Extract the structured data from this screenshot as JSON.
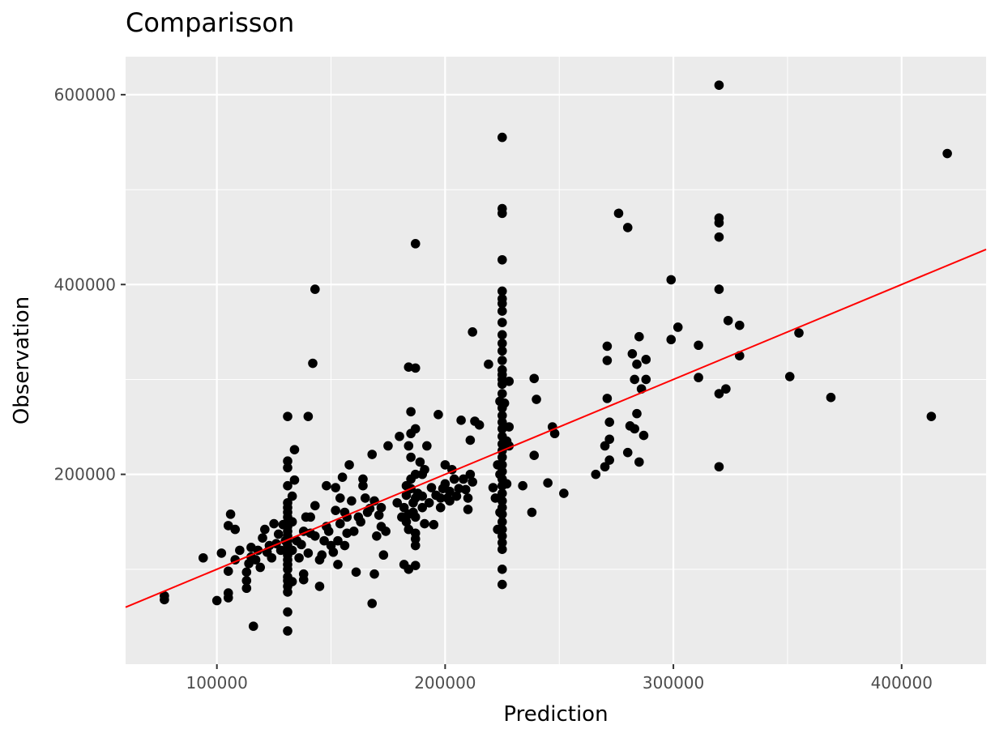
{
  "chart_data": {
    "type": "scatter",
    "title": "Comparisson",
    "xlabel": "Prediction",
    "ylabel": "Observation",
    "xlim": [
      60000,
      437000
    ],
    "ylim": [
      0,
      640000
    ],
    "x_ticks": [
      100000,
      200000,
      300000,
      400000
    ],
    "x_tick_labels": [
      "100000",
      "200000",
      "300000",
      "400000"
    ],
    "y_ticks": [
      200000,
      400000,
      600000
    ],
    "y_tick_labels": [
      "200000",
      "400000",
      "600000"
    ],
    "grid": true,
    "legend": "none",
    "point_color": "#000000",
    "line_color": "#ff0000",
    "background_color": "#ebebeb",
    "fit_line": {
      "x": [
        60000,
        437000
      ],
      "y": [
        60000,
        437000
      ]
    },
    "points": [
      [
        77000,
        68000
      ],
      [
        77000,
        72000
      ],
      [
        94000,
        112000
      ],
      [
        100000,
        67000
      ],
      [
        102000,
        117000
      ],
      [
        105000,
        70000
      ],
      [
        105000,
        75000
      ],
      [
        105000,
        98000
      ],
      [
        105000,
        146000
      ],
      [
        106000,
        158000
      ],
      [
        108000,
        110000
      ],
      [
        108000,
        142000
      ],
      [
        110000,
        120000
      ],
      [
        113000,
        80000
      ],
      [
        113000,
        88000
      ],
      [
        113000,
        97000
      ],
      [
        114000,
        106000
      ],
      [
        115000,
        113000
      ],
      [
        115000,
        123000
      ],
      [
        116000,
        40000
      ],
      [
        117000,
        110000
      ],
      [
        118000,
        120000
      ],
      [
        119000,
        102000
      ],
      [
        120000,
        133000
      ],
      [
        121000,
        142000
      ],
      [
        122000,
        118000
      ],
      [
        123000,
        125000
      ],
      [
        124000,
        112000
      ],
      [
        125000,
        148000
      ],
      [
        126000,
        127000
      ],
      [
        127000,
        137000
      ],
      [
        128000,
        120000
      ],
      [
        129000,
        147000
      ],
      [
        130000,
        130000
      ],
      [
        131000,
        35000
      ],
      [
        131000,
        55000
      ],
      [
        131000,
        76000
      ],
      [
        131000,
        82000
      ],
      [
        131000,
        88000
      ],
      [
        131000,
        92000
      ],
      [
        131000,
        100000
      ],
      [
        131000,
        105000
      ],
      [
        131000,
        110000
      ],
      [
        131000,
        115000
      ],
      [
        131000,
        120000
      ],
      [
        131000,
        125000
      ],
      [
        131000,
        130000
      ],
      [
        131000,
        135000
      ],
      [
        131000,
        140000
      ],
      [
        131000,
        145000
      ],
      [
        131000,
        150000
      ],
      [
        131000,
        155000
      ],
      [
        131000,
        160000
      ],
      [
        131000,
        165000
      ],
      [
        131000,
        170000
      ],
      [
        131000,
        188000
      ],
      [
        131000,
        207000
      ],
      [
        131000,
        214000
      ],
      [
        131000,
        261000
      ],
      [
        133000,
        87000
      ],
      [
        133000,
        120000
      ],
      [
        133000,
        150000
      ],
      [
        133000,
        177000
      ],
      [
        134000,
        226000
      ],
      [
        134000,
        194000
      ],
      [
        135000,
        130000
      ],
      [
        136000,
        112000
      ],
      [
        137000,
        126000
      ],
      [
        138000,
        89000
      ],
      [
        138000,
        95000
      ],
      [
        138000,
        140000
      ],
      [
        139000,
        155000
      ],
      [
        140000,
        117000
      ],
      [
        140000,
        261000
      ],
      [
        141000,
        138000
      ],
      [
        141000,
        155000
      ],
      [
        142000,
        317000
      ],
      [
        143000,
        395000
      ],
      [
        143000,
        135000
      ],
      [
        143000,
        167000
      ],
      [
        145000,
        82000
      ],
      [
        145000,
        110000
      ],
      [
        146000,
        115000
      ],
      [
        147000,
        130000
      ],
      [
        148000,
        145000
      ],
      [
        148000,
        188000
      ],
      [
        149000,
        140000
      ],
      [
        150000,
        125000
      ],
      [
        151000,
        118000
      ],
      [
        152000,
        162000
      ],
      [
        152000,
        186000
      ],
      [
        153000,
        105000
      ],
      [
        153000,
        130000
      ],
      [
        154000,
        148000
      ],
      [
        154000,
        175000
      ],
      [
        155000,
        197000
      ],
      [
        156000,
        125000
      ],
      [
        156000,
        160000
      ],
      [
        157000,
        155000
      ],
      [
        157000,
        138000
      ],
      [
        158000,
        210000
      ],
      [
        159000,
        172000
      ],
      [
        160000,
        140000
      ],
      [
        161000,
        97000
      ],
      [
        162000,
        155000
      ],
      [
        163000,
        150000
      ],
      [
        164000,
        188000
      ],
      [
        164000,
        195000
      ],
      [
        165000,
        175000
      ],
      [
        166000,
        160000
      ],
      [
        167000,
        164000
      ],
      [
        168000,
        64000
      ],
      [
        168000,
        221000
      ],
      [
        169000,
        95000
      ],
      [
        169000,
        172000
      ],
      [
        170000,
        135000
      ],
      [
        171000,
        157000
      ],
      [
        172000,
        145000
      ],
      [
        172000,
        165000
      ],
      [
        173000,
        115000
      ],
      [
        174000,
        140000
      ],
      [
        175000,
        230000
      ],
      [
        179000,
        170000
      ],
      [
        180000,
        240000
      ],
      [
        181000,
        155000
      ],
      [
        182000,
        105000
      ],
      [
        182000,
        165000
      ],
      [
        183000,
        150000
      ],
      [
        183000,
        178000
      ],
      [
        183000,
        188000
      ],
      [
        184000,
        100000
      ],
      [
        184000,
        142000
      ],
      [
        184000,
        158000
      ],
      [
        184000,
        230000
      ],
      [
        184000,
        313000
      ],
      [
        185000,
        185000
      ],
      [
        185000,
        195000
      ],
      [
        185000,
        218000
      ],
      [
        185000,
        243000
      ],
      [
        185000,
        266000
      ],
      [
        186000,
        160000
      ],
      [
        186000,
        170000
      ],
      [
        187000,
        125000
      ],
      [
        187000,
        132000
      ],
      [
        187000,
        138000
      ],
      [
        187000,
        155000
      ],
      [
        187000,
        175000
      ],
      [
        187000,
        200000
      ],
      [
        187000,
        248000
      ],
      [
        187000,
        312000
      ],
      [
        187000,
        104000
      ],
      [
        187000,
        443000
      ],
      [
        188000,
        180000
      ],
      [
        189000,
        213000
      ],
      [
        190000,
        165000
      ],
      [
        190000,
        177000
      ],
      [
        190000,
        200000
      ],
      [
        191000,
        148000
      ],
      [
        191000,
        205000
      ],
      [
        192000,
        230000
      ],
      [
        193000,
        170000
      ],
      [
        194000,
        186000
      ],
      [
        195000,
        147000
      ],
      [
        196000,
        178000
      ],
      [
        197000,
        263000
      ],
      [
        198000,
        165000
      ],
      [
        198000,
        175000
      ],
      [
        199000,
        185000
      ],
      [
        200000,
        190000
      ],
      [
        200000,
        210000
      ],
      [
        201000,
        175000
      ],
      [
        202000,
        172000
      ],
      [
        202000,
        182000
      ],
      [
        203000,
        205000
      ],
      [
        204000,
        195000
      ],
      [
        205000,
        177000
      ],
      [
        206000,
        185000
      ],
      [
        207000,
        257000
      ],
      [
        208000,
        195000
      ],
      [
        209000,
        184000
      ],
      [
        210000,
        163000
      ],
      [
        210000,
        175000
      ],
      [
        211000,
        200000
      ],
      [
        211000,
        236000
      ],
      [
        212000,
        192000
      ],
      [
        212000,
        350000
      ],
      [
        213000,
        256000
      ],
      [
        215000,
        252000
      ],
      [
        219000,
        316000
      ],
      [
        221000,
        186000
      ],
      [
        222000,
        175000
      ],
      [
        223000,
        142000
      ],
      [
        223000,
        210000
      ],
      [
        224000,
        160000
      ],
      [
        224000,
        200000
      ],
      [
        224000,
        277000
      ],
      [
        225000,
        84000
      ],
      [
        225000,
        100000
      ],
      [
        225000,
        121000
      ],
      [
        225000,
        128000
      ],
      [
        225000,
        135000
      ],
      [
        225000,
        142000
      ],
      [
        225000,
        150000
      ],
      [
        225000,
        158000
      ],
      [
        225000,
        165000
      ],
      [
        225000,
        172000
      ],
      [
        225000,
        180000
      ],
      [
        225000,
        188000
      ],
      [
        225000,
        195000
      ],
      [
        225000,
        203000
      ],
      [
        225000,
        210000
      ],
      [
        225000,
        218000
      ],
      [
        225000,
        225000
      ],
      [
        225000,
        232000
      ],
      [
        225000,
        240000
      ],
      [
        225000,
        248000
      ],
      [
        225000,
        255000
      ],
      [
        225000,
        262000
      ],
      [
        225000,
        270000
      ],
      [
        225000,
        285000
      ],
      [
        225000,
        295000
      ],
      [
        225000,
        300000
      ],
      [
        225000,
        305000
      ],
      [
        225000,
        310000
      ],
      [
        225000,
        320000
      ],
      [
        225000,
        330000
      ],
      [
        225000,
        338000
      ],
      [
        225000,
        347000
      ],
      [
        225000,
        360000
      ],
      [
        225000,
        372000
      ],
      [
        225000,
        380000
      ],
      [
        225000,
        385000
      ],
      [
        225000,
        393000
      ],
      [
        225000,
        426000
      ],
      [
        225000,
        475000
      ],
      [
        225000,
        480000
      ],
      [
        225000,
        555000
      ],
      [
        226000,
        275000
      ],
      [
        227000,
        190000
      ],
      [
        227000,
        235000
      ],
      [
        228000,
        230000
      ],
      [
        228000,
        250000
      ],
      [
        228000,
        298000
      ],
      [
        234000,
        188000
      ],
      [
        238000,
        160000
      ],
      [
        239000,
        220000
      ],
      [
        239000,
        301000
      ],
      [
        240000,
        279000
      ],
      [
        245000,
        191000
      ],
      [
        247000,
        250000
      ],
      [
        248000,
        243000
      ],
      [
        252000,
        180000
      ],
      [
        266000,
        200000
      ],
      [
        270000,
        208000
      ],
      [
        270000,
        230000
      ],
      [
        271000,
        280000
      ],
      [
        271000,
        320000
      ],
      [
        271000,
        335000
      ],
      [
        272000,
        215000
      ],
      [
        272000,
        237000
      ],
      [
        272000,
        255000
      ],
      [
        276000,
        475000
      ],
      [
        280000,
        460000
      ],
      [
        280000,
        223000
      ],
      [
        281000,
        251000
      ],
      [
        282000,
        327000
      ],
      [
        283000,
        248000
      ],
      [
        283000,
        300000
      ],
      [
        284000,
        264000
      ],
      [
        284000,
        316000
      ],
      [
        285000,
        213000
      ],
      [
        285000,
        345000
      ],
      [
        286000,
        290000
      ],
      [
        287000,
        241000
      ],
      [
        288000,
        321000
      ],
      [
        288000,
        300000
      ],
      [
        299000,
        342000
      ],
      [
        299000,
        405000
      ],
      [
        302000,
        355000
      ],
      [
        311000,
        302000
      ],
      [
        311000,
        336000
      ],
      [
        320000,
        208000
      ],
      [
        320000,
        285000
      ],
      [
        320000,
        395000
      ],
      [
        320000,
        450000
      ],
      [
        320000,
        465000
      ],
      [
        320000,
        470000
      ],
      [
        320000,
        610000
      ],
      [
        323000,
        290000
      ],
      [
        324000,
        362000
      ],
      [
        329000,
        325000
      ],
      [
        329000,
        357000
      ],
      [
        351000,
        303000
      ],
      [
        355000,
        349000
      ],
      [
        369000,
        281000
      ],
      [
        413000,
        261000
      ],
      [
        420000,
        538000
      ]
    ]
  }
}
